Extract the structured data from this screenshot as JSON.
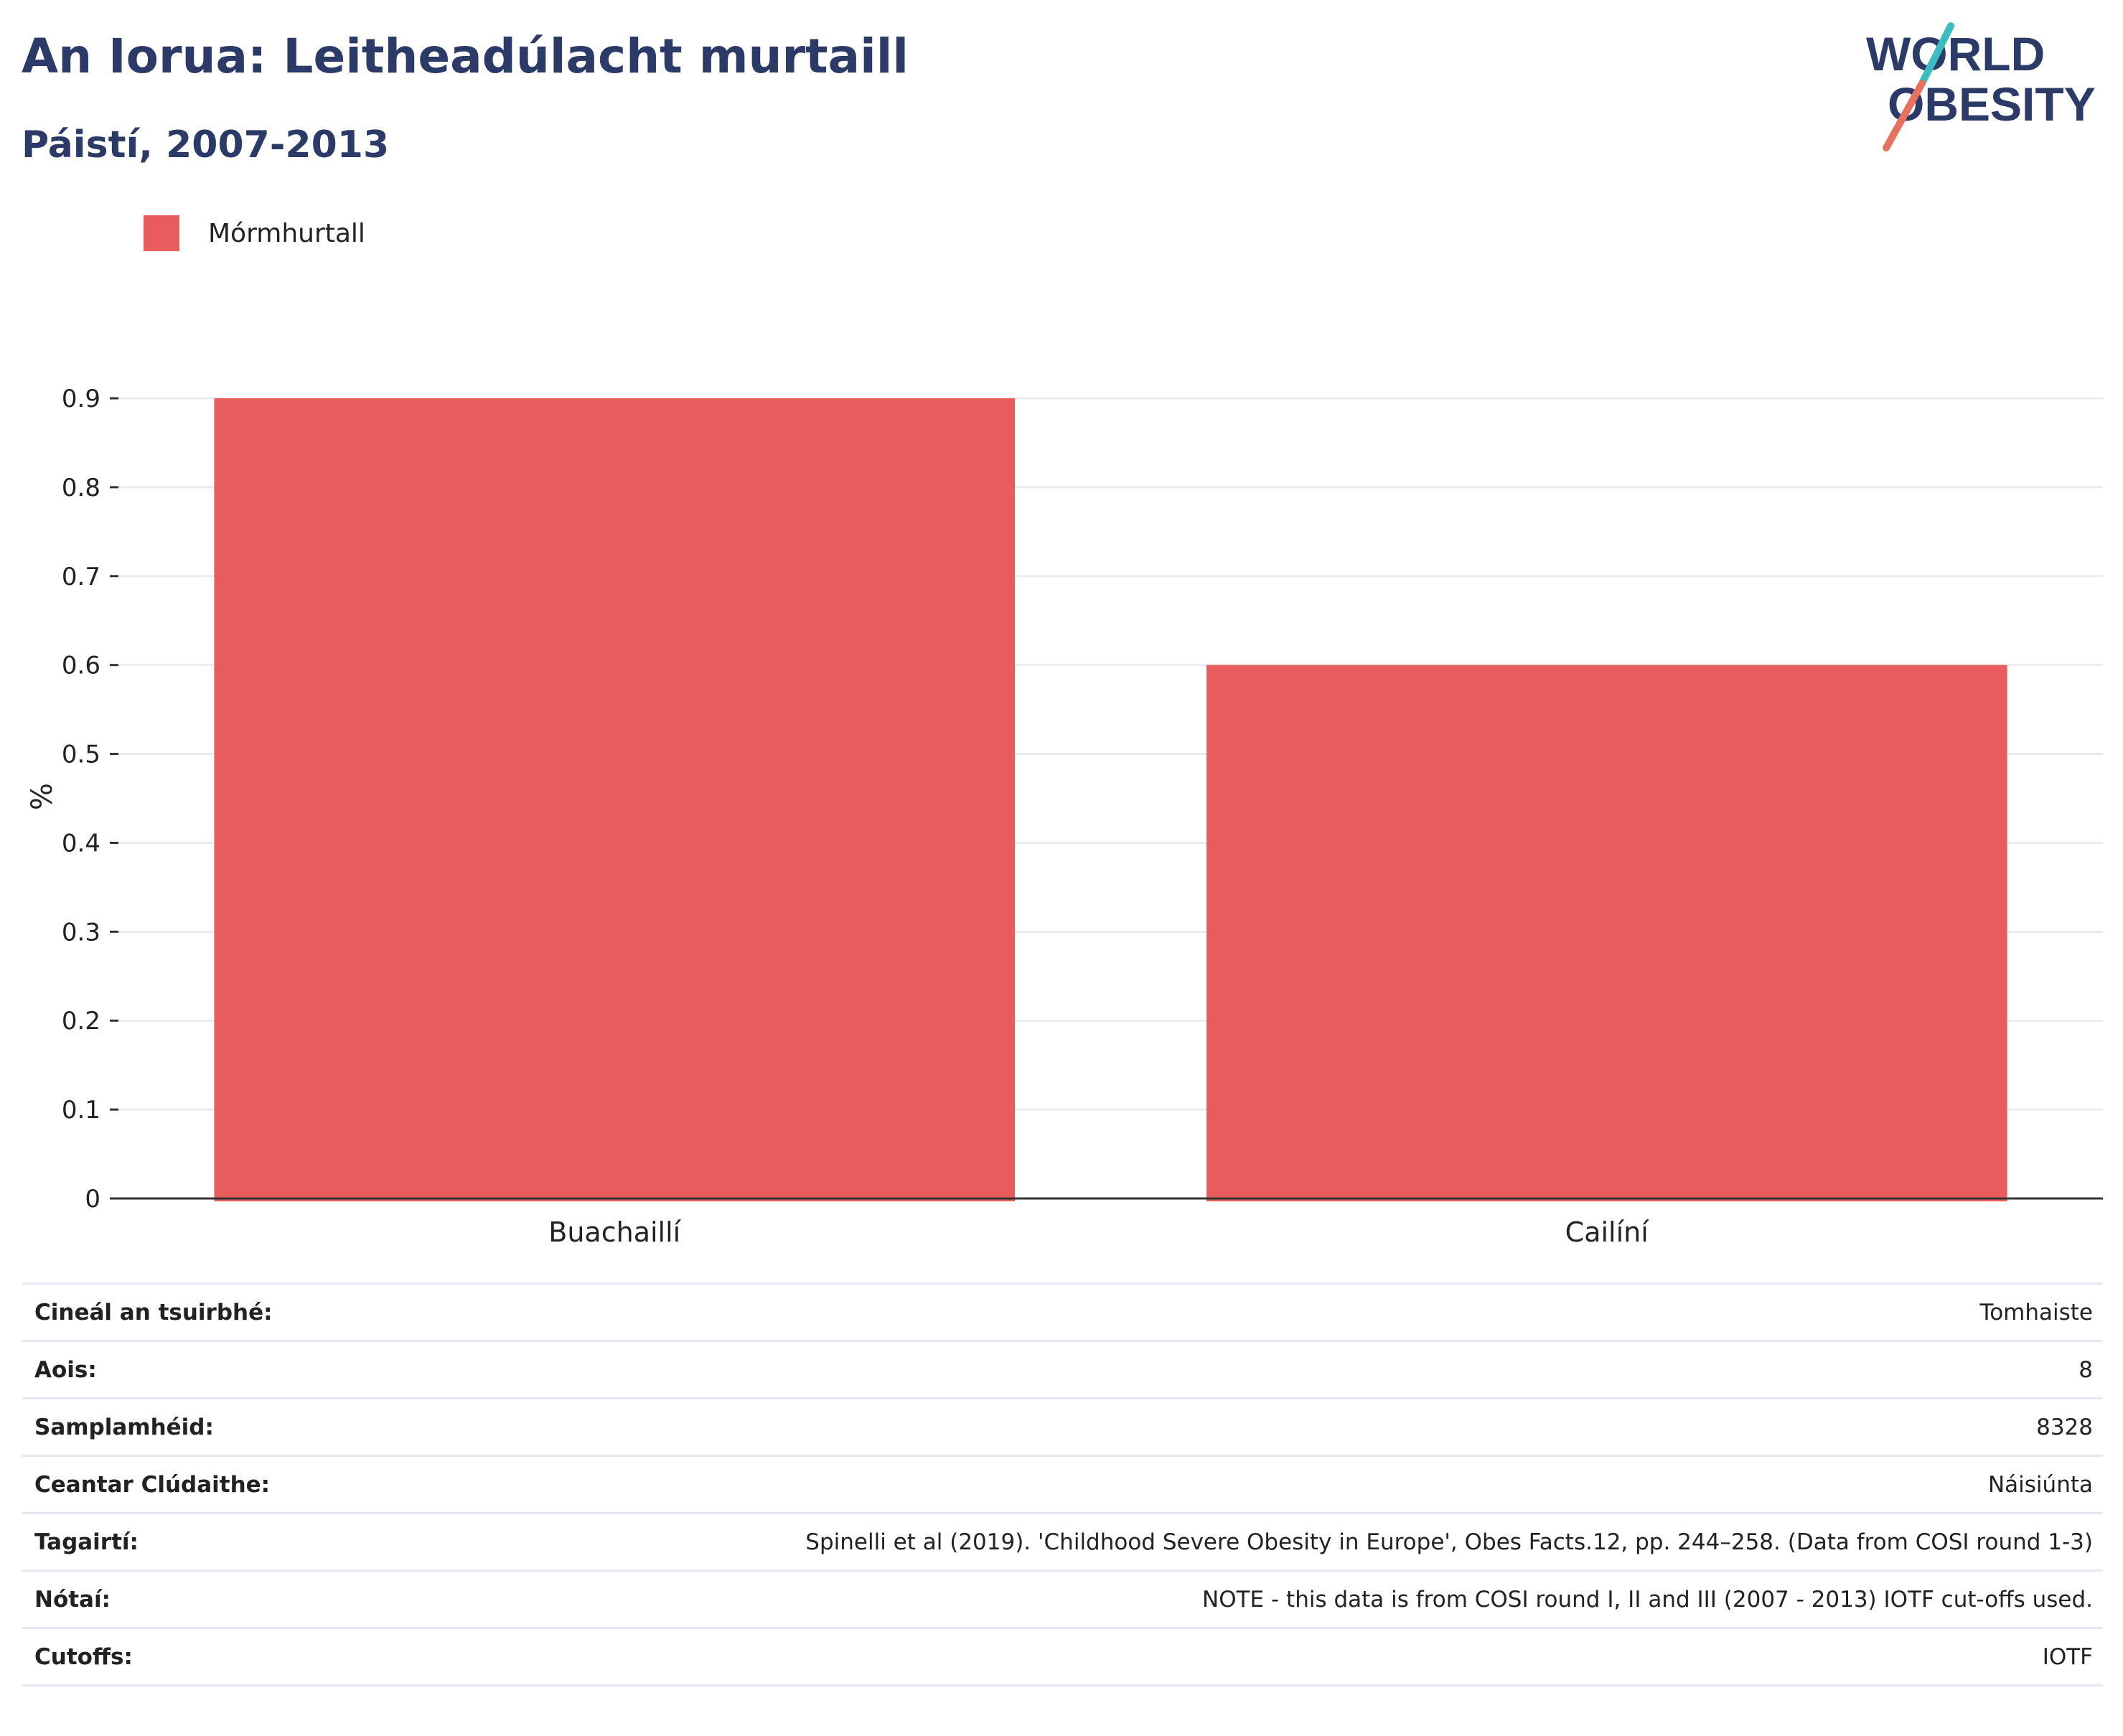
{
  "title": "An Iorua: Leitheadúlacht murtaill",
  "subtitle": "Páistí, 2007-2013",
  "logo": {
    "line1": "WORLD",
    "line2": "OBESITY"
  },
  "colors": {
    "bar": "#e95c5d",
    "title": "#2b3a67",
    "grid": "#ebebf0",
    "axis": "#333333",
    "logo_teal": "#3bbdc2",
    "logo_coral": "#e8705f"
  },
  "chart_data": {
    "type": "bar",
    "categories": [
      "Buachaillí",
      "Cailíní"
    ],
    "series": [
      {
        "name": "Mórmhurtall",
        "values": [
          0.9,
          0.6
        ]
      }
    ],
    "ylabel": "%",
    "xlabel": "",
    "ylim": [
      0,
      0.9
    ],
    "yticks": [
      "0",
      "0.1",
      "0.2",
      "0.3",
      "0.4",
      "0.5",
      "0.6",
      "0.7",
      "0.8",
      "0.9"
    ],
    "grid": true,
    "legend": "top-left"
  },
  "info_table": [
    {
      "label": "Cineál an tsuirbhé:",
      "value": "Tomhaiste"
    },
    {
      "label": "Aois:",
      "value": "8"
    },
    {
      "label": "Samplamhéid:",
      "value": "8328"
    },
    {
      "label": "Ceantar Clúdaithe:",
      "value": "Náisiúnta"
    },
    {
      "label": "Tagairtí:",
      "value": "Spinelli et al (2019). 'Childhood Severe Obesity in Europe', Obes Facts.12, pp. 244–258. (Data from COSI round 1-3)"
    },
    {
      "label": "Nótaí:",
      "value": "NOTE - this data is from COSI round I, II and III (2007 - 2013) IOTF cut-offs used."
    },
    {
      "label": "Cutoffs:",
      "value": "IOTF"
    }
  ]
}
